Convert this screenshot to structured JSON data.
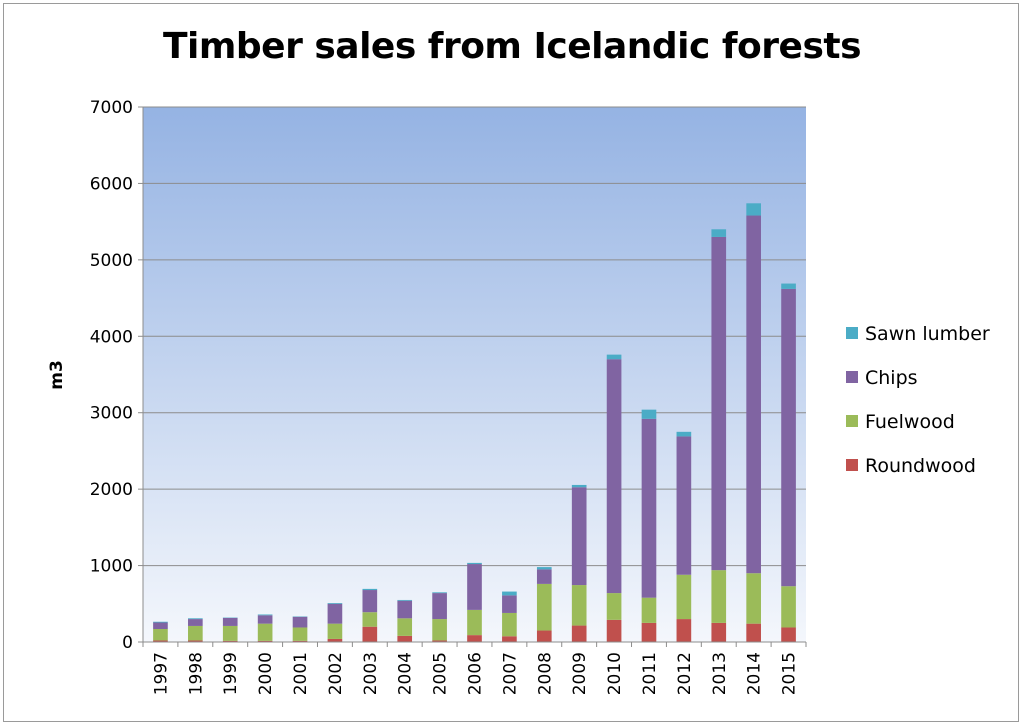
{
  "chart_data": {
    "type": "bar",
    "stacked": true,
    "title": "Timber sales from Icelandic forests",
    "xlabel": "",
    "ylabel": "m3",
    "ylim": [
      0,
      7000
    ],
    "yticks": [
      0,
      1000,
      2000,
      3000,
      4000,
      5000,
      6000,
      7000
    ],
    "grid": true,
    "legend_position": "right",
    "categories": [
      "1997",
      "1998",
      "1999",
      "2000",
      "2001",
      "2002",
      "2003",
      "2004",
      "2005",
      "2006",
      "2007",
      "2008",
      "2009",
      "2010",
      "2011",
      "2012",
      "2013",
      "2014",
      "2015"
    ],
    "series": [
      {
        "name": "Roundwood",
        "color": "#c0504d",
        "values": [
          20,
          20,
          15,
          15,
          15,
          40,
          200,
          80,
          20,
          90,
          75,
          150,
          215,
          290,
          250,
          300,
          250,
          240,
          190
        ]
      },
      {
        "name": "Fuelwood",
        "color": "#9bbb59",
        "values": [
          150,
          190,
          195,
          225,
          175,
          200,
          190,
          230,
          280,
          330,
          305,
          610,
          530,
          350,
          330,
          580,
          690,
          660,
          540
        ]
      },
      {
        "name": "Chips",
        "color": "#8064a2",
        "values": [
          85,
          90,
          105,
          110,
          140,
          260,
          290,
          230,
          340,
          600,
          230,
          190,
          1280,
          3060,
          2340,
          1810,
          4360,
          4680,
          3890
        ]
      },
      {
        "name": "Sawn lumber",
        "color": "#4bacc6",
        "values": [
          10,
          10,
          5,
          10,
          5,
          10,
          15,
          10,
          10,
          15,
          50,
          30,
          30,
          60,
          120,
          60,
          100,
          160,
          70
        ]
      }
    ],
    "legend_order": [
      "Sawn lumber",
      "Chips",
      "Fuelwood",
      "Roundwood"
    ]
  }
}
